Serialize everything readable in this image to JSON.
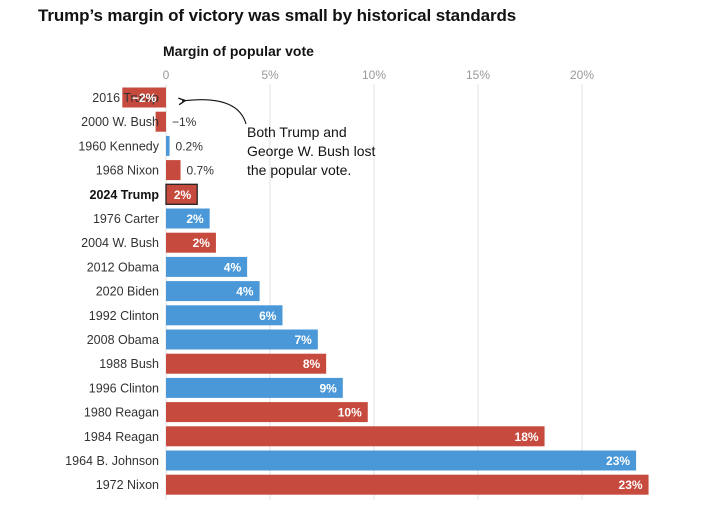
{
  "colors": {
    "republican": "#c64a3d",
    "democrat": "#4a98d8",
    "highlight_stroke": "#222222",
    "grid": "#e2e2e2"
  },
  "chart_data": {
    "type": "bar",
    "orientation": "horizontal",
    "title": "Trump’s margin of victory was small by historical standards",
    "xlabel": "Margin of popular vote",
    "xlim": [
      -2,
      23.3
    ],
    "x_ticks": [
      0,
      5,
      10,
      15,
      20
    ],
    "x_tick_labels": [
      "0",
      "5%",
      "10%",
      "15%",
      "20%"
    ],
    "grid": true,
    "categories": [
      "2016 Trump",
      "2000 W. Bush",
      "1960 Kennedy",
      "1968 Nixon",
      "2024 Trump",
      "1976 Carter",
      "2004 W. Bush",
      "2012 Obama",
      "2020 Biden",
      "1992 Clinton",
      "2008 Obama",
      "1988 Bush",
      "1996 Clinton",
      "1980 Reagan",
      "1984 Reagan",
      "1964 B. Johnson",
      "1972 Nixon"
    ],
    "values": [
      -2.1,
      -0.5,
      0.17,
      0.7,
      1.5,
      2.1,
      2.4,
      3.9,
      4.5,
      5.6,
      7.3,
      7.7,
      8.5,
      9.7,
      18.2,
      22.6,
      23.2
    ],
    "value_labels": [
      "−2%",
      "−1%",
      "0.2%",
      "0.7%",
      "2%",
      "2%",
      "2%",
      "4%",
      "4%",
      "6%",
      "7%",
      "8%",
      "9%",
      "10%",
      "18%",
      "23%",
      "23%"
    ],
    "party": [
      "R",
      "R",
      "D",
      "R",
      "R",
      "D",
      "R",
      "D",
      "D",
      "D",
      "D",
      "R",
      "D",
      "R",
      "R",
      "D",
      "R"
    ],
    "highlighted": [
      false,
      false,
      false,
      false,
      true,
      false,
      false,
      false,
      false,
      false,
      false,
      false,
      false,
      false,
      false,
      false,
      false
    ],
    "annotation": "Both Trump and George W. Bush lost the popular vote."
  }
}
